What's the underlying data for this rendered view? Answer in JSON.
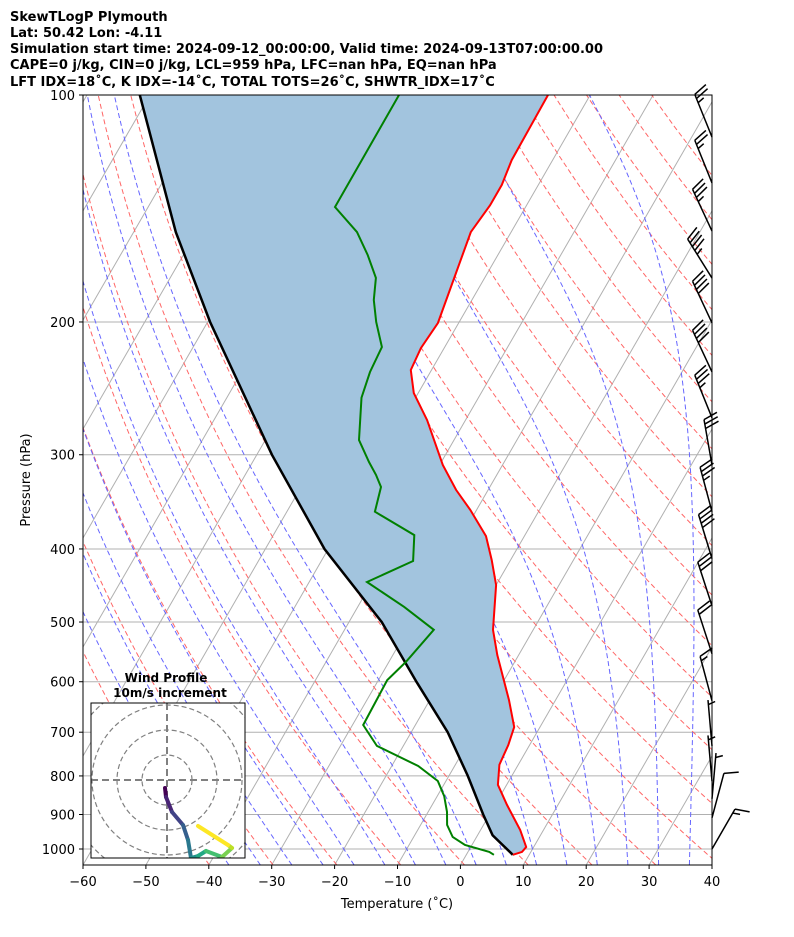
{
  "chart_data": {
    "type": "line",
    "subtype": "skewt-logp",
    "title_lines": [
      "SkewTLogP Plymouth",
      "Lat: 50.42   Lon: -4.11",
      "Simulation start time: 2024-09-12_00:00:00, Valid time: 2024-09-13T07:00:00.00",
      "CAPE=0 j/kg, CIN=0 j/kg, LCL=959 hPa, LFC=nan hPa, EQ=nan hPa",
      "LFT IDX=18˚C, K IDX=-14˚C, TOTAL TOTS=26˚C, SHWTR_IDX=17˚C"
    ],
    "xlabel": "Temperature (˚C)",
    "ylabel": "Pressure (hPa)",
    "xlim": [
      -60,
      40
    ],
    "ylim": [
      1050,
      100
    ],
    "x_ticks": [
      -60,
      -50,
      -40,
      -30,
      -20,
      -10,
      0,
      10,
      20,
      30,
      40
    ],
    "x_tick_labels": [
      "−60",
      "−50",
      "−40",
      "−30",
      "−20",
      "−10",
      "0",
      "10",
      "20",
      "30",
      "40"
    ],
    "y_ticks": [
      100,
      200,
      300,
      400,
      500,
      600,
      700,
      800,
      900,
      1000
    ],
    "y_tick_labels": [
      "100",
      "200",
      "300",
      "400",
      "500",
      "600",
      "700",
      "800",
      "900",
      "1000"
    ],
    "grid": true,
    "colors": {
      "temperature": "#ff0000",
      "dewpoint": "#008000",
      "parcel": "#000000",
      "fill": "#a2c4de",
      "dry_adiabat": "#ff6666",
      "moist_adiabat": "#6666ff",
      "isotherm": "#b0b0b0"
    },
    "series": [
      {
        "name": "Temperature",
        "p": [
          100,
          122,
          131.6,
          140,
          152,
          200.6,
          216.6,
          231.6,
          248.5,
          269.9,
          309.5,
          334,
          355,
          384.6,
          413.7,
          446.6,
          512,
          553,
          634.6,
          689,
          727.8,
          773,
          822,
          874,
          943.6,
          993.8,
          1009,
          1018
        ],
        "t": [
          -56.7,
          -56.5,
          -55.8,
          -55.8,
          -56.4,
          -53.3,
          -53.7,
          -53.3,
          -50.7,
          -46.1,
          -39.5,
          -35.1,
          -31,
          -26.1,
          -23,
          -20,
          -16.4,
          -13.4,
          -7.4,
          -4.1,
          -3.4,
          -3.0,
          -1.4,
          1.9,
          6.3,
          8.8,
          8.6,
          7.4
        ]
      },
      {
        "name": "Dewpoint",
        "p": [
          100,
          140.8,
          152,
          163,
          174.8,
          187,
          200,
          215.9,
          233,
          252,
          286.8,
          306.7,
          319,
          331,
          357,
          383.4,
          415,
          442.5,
          477.5,
          512,
          565,
          597,
          684.7,
          730,
          776,
          812.6,
          850.7,
          893,
          929,
          964,
          988,
          1009,
          1018
        ],
        "t": [
          -80.4,
          -80.3,
          -74.5,
          -70.7,
          -67.3,
          -65.6,
          -63.2,
          -60,
          -59.6,
          -58.6,
          -55.1,
          -51.5,
          -49.2,
          -47.3,
          -46,
          -37.6,
          -35.4,
          -40.8,
          -32.6,
          -25.8,
          -27.3,
          -28.6,
          -28.3,
          -24.2,
          -15.8,
          -11.3,
          -8.9,
          -7,
          -5.8,
          -3.8,
          -1.1,
          3.4,
          4.4
        ]
      },
      {
        "name": "Parcel",
        "p": [
          100,
          152,
          200,
          300,
          400,
          500,
          600,
          700,
          800,
          900,
          959,
          1018
        ],
        "t": [
          -121.6,
          -103.3,
          -89.6,
          -67.6,
          -50.6,
          -34.8,
          -23.8,
          -14.2,
          -7,
          -1,
          2.4,
          7.4
        ]
      }
    ],
    "dry_adiabat_theta_K": [
      230,
      240,
      250,
      260,
      270,
      280,
      290,
      300,
      310,
      320,
      330,
      340,
      350,
      360,
      370,
      380,
      390,
      400,
      410,
      420,
      430,
      440,
      450
    ],
    "moist_adiabat_t1000_C": [
      -40,
      -35,
      -30,
      -25,
      -20,
      -15,
      -10,
      -5,
      0,
      5,
      10,
      15,
      20,
      25,
      30,
      35,
      40
    ],
    "wind_barbs": [
      {
        "p": 113.7,
        "speed_kt": 25,
        "dir": 338
      },
      {
        "p": 130.8,
        "speed_kt": 25,
        "dir": 338
      },
      {
        "p": 151.5,
        "speed_kt": 35,
        "dir": 335
      },
      {
        "p": 174.9,
        "speed_kt": 45,
        "dir": 328
      },
      {
        "p": 200.6,
        "speed_kt": 40,
        "dir": 335
      },
      {
        "p": 233,
        "speed_kt": 40,
        "dir": 335
      },
      {
        "p": 268,
        "speed_kt": 35,
        "dir": 338
      },
      {
        "p": 309.5,
        "speed_kt": 30,
        "dir": 350
      },
      {
        "p": 357,
        "speed_kt": 35,
        "dir": 345
      },
      {
        "p": 412,
        "speed_kt": 40,
        "dir": 343
      },
      {
        "p": 476,
        "speed_kt": 30,
        "dir": 342
      },
      {
        "p": 551,
        "speed_kt": 20,
        "dir": 342
      },
      {
        "p": 636,
        "speed_kt": 15,
        "dir": 345
      },
      {
        "p": 730,
        "speed_kt": 5,
        "dir": 355
      },
      {
        "p": 813,
        "speed_kt": 5,
        "dir": 355
      },
      {
        "p": 858,
        "speed_kt": 5,
        "dir": 5
      },
      {
        "p": 909,
        "speed_kt": 10,
        "dir": 15
      },
      {
        "p": 1000,
        "speed_kt": 15,
        "dir": 30
      }
    ],
    "wind_profile": {
      "title": "Wind Profile",
      "subtitle": "10m/s increment",
      "ring_step_ms": 10,
      "u": [
        -0.8,
        -0.4,
        2,
        6.4,
        8.4,
        9.6,
        12.4,
        15.6,
        22,
        26,
        24.4,
        12.4
      ],
      "v": [
        -3.2,
        -6.8,
        -12.8,
        -18,
        -24,
        -31.2,
        -30.4,
        -28.4,
        -30.8,
        -27.2,
        -26,
        -18.4
      ]
    }
  }
}
